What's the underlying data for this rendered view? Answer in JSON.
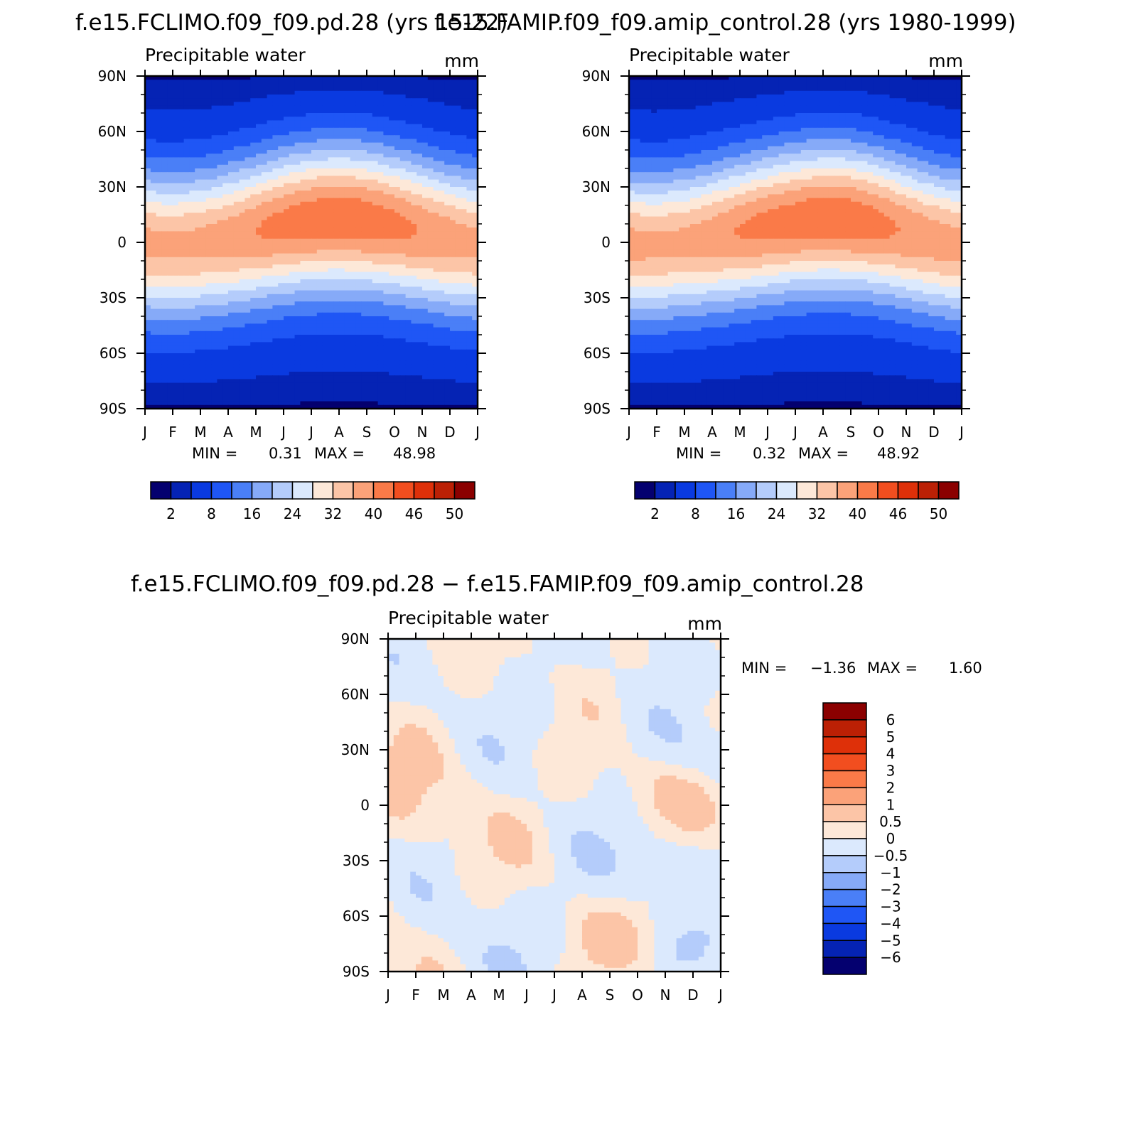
{
  "chart_data": [
    {
      "type": "heatmap",
      "title": "f.e15.FCLIMO.f09_f09.pd.28 (yrs 15-22)",
      "subtitle_left": "Precipitable water",
      "subtitle_right": "mm",
      "x_ticks": [
        "J",
        "F",
        "M",
        "A",
        "M",
        "J",
        "J",
        "A",
        "S",
        "O",
        "N",
        "D",
        "J"
      ],
      "y_ticks": [
        "90N",
        "60N",
        "30N",
        "0",
        "30S",
        "60S",
        "90S"
      ],
      "min_label": "MIN =",
      "min_value": "0.31",
      "max_label": "MAX =",
      "max_value": "48.98",
      "colorbar_labels": [
        "2",
        "8",
        "16",
        "24",
        "32",
        "40",
        "46",
        "50"
      ],
      "colors": [
        "#04006f",
        "#0523b4",
        "#0a3ae0",
        "#1f56f5",
        "#4a7ff7",
        "#86aaf8",
        "#b4ccfb",
        "#dbe9fd",
        "#fde8d8",
        "#fcc5a7",
        "#fba279",
        "#fa7a48",
        "#f24e1f",
        "#de3009",
        "#bb2005",
        "#8b0000"
      ]
    },
    {
      "type": "heatmap",
      "title": "f.e15.FAMIP.f09_f09.amip_control.28 (yrs 1980-1999)",
      "subtitle_left": "Precipitable water",
      "subtitle_right": "mm",
      "x_ticks": [
        "J",
        "F",
        "M",
        "A",
        "M",
        "J",
        "J",
        "A",
        "S",
        "O",
        "N",
        "D",
        "J"
      ],
      "y_ticks": [
        "90N",
        "60N",
        "30N",
        "0",
        "30S",
        "60S",
        "90S"
      ],
      "min_label": "MIN =",
      "min_value": "0.32",
      "max_label": "MAX =",
      "max_value": "48.92",
      "colorbar_labels": [
        "2",
        "8",
        "16",
        "24",
        "32",
        "40",
        "46",
        "50"
      ],
      "colors": [
        "#04006f",
        "#0523b4",
        "#0a3ae0",
        "#1f56f5",
        "#4a7ff7",
        "#86aaf8",
        "#b4ccfb",
        "#dbe9fd",
        "#fde8d8",
        "#fcc5a7",
        "#fba279",
        "#fa7a48",
        "#f24e1f",
        "#de3009",
        "#bb2005",
        "#8b0000"
      ]
    },
    {
      "type": "heatmap",
      "title": "f.e15.FCLIMO.f09_f09.pd.28 − f.e15.FAMIP.f09_f09.amip_control.28",
      "subtitle_left": "Precipitable water",
      "subtitle_right": "mm",
      "x_ticks": [
        "J",
        "F",
        "M",
        "A",
        "M",
        "J",
        "J",
        "A",
        "S",
        "O",
        "N",
        "D",
        "J"
      ],
      "y_ticks": [
        "90N",
        "60N",
        "30N",
        "0",
        "30S",
        "60S",
        "90S"
      ],
      "min_label": "MIN =",
      "min_value": "−1.36",
      "max_label": "MAX =",
      "max_value": "1.60",
      "colorbar_labels": [
        "6",
        "5",
        "4",
        "3",
        "2",
        "1",
        "0.5",
        "0",
        "−0.5",
        "−1",
        "−2",
        "−3",
        "−4",
        "−5",
        "−6"
      ],
      "colors": [
        "#8b0000",
        "#bb2005",
        "#de3009",
        "#f24e1f",
        "#fa7a48",
        "#fba279",
        "#fcc5a7",
        "#fde8d8",
        "#dbe9fd",
        "#b4ccfb",
        "#86aaf8",
        "#4a7ff7",
        "#1f56f5",
        "#0a3ae0",
        "#0523b4",
        "#04006f"
      ]
    }
  ]
}
